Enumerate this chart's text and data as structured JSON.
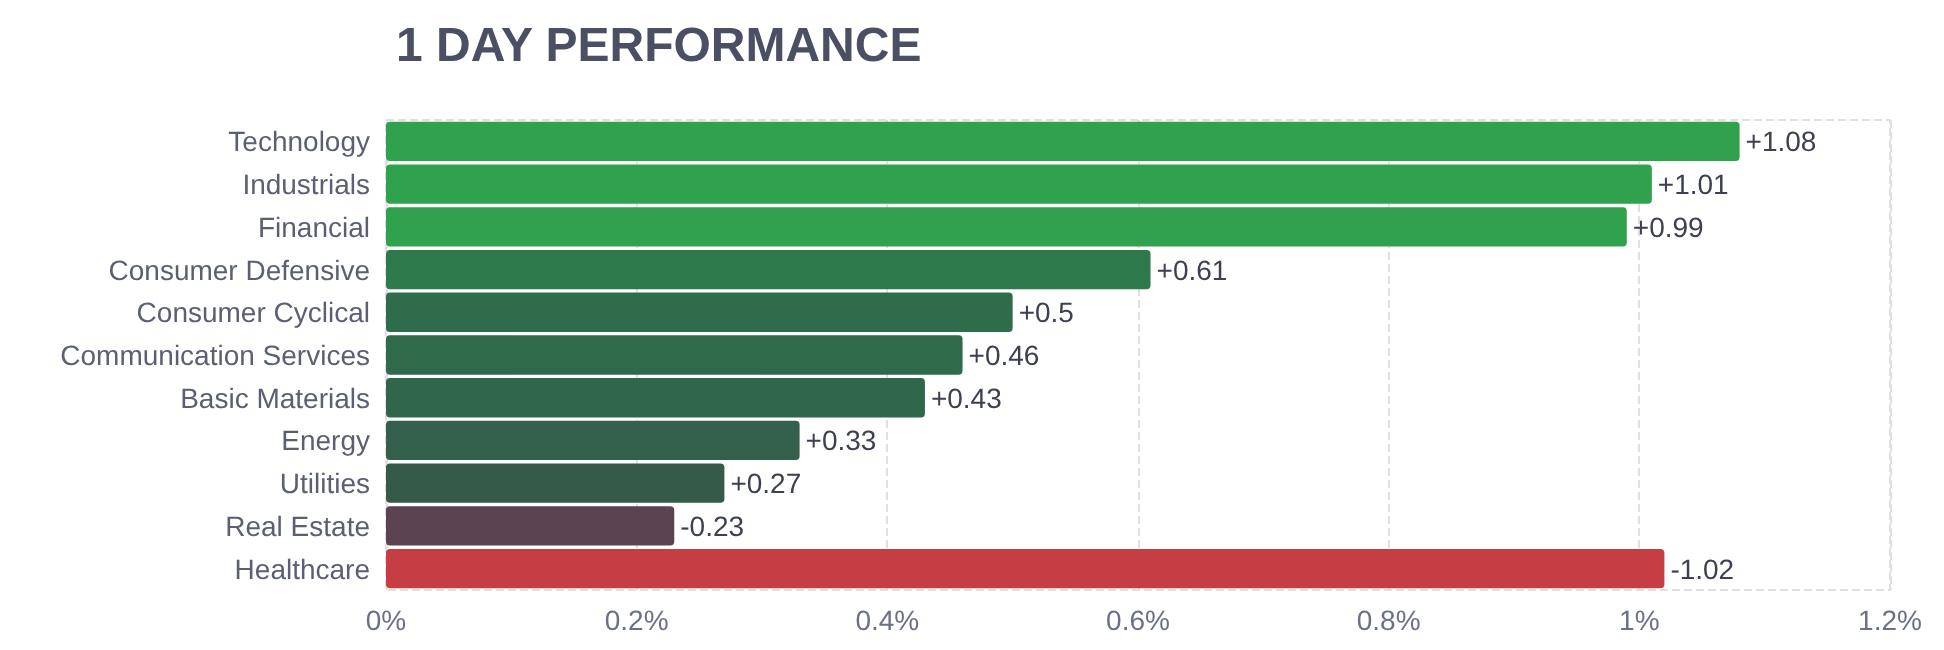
{
  "chart_data": {
    "type": "bar",
    "orientation": "horizontal",
    "title": "1 DAY PERFORMANCE",
    "categories": [
      "Technology",
      "Industrials",
      "Financial",
      "Consumer Defensive",
      "Consumer Cyclical",
      "Communication Services",
      "Basic Materials",
      "Energy",
      "Utilities",
      "Real Estate",
      "Healthcare"
    ],
    "values": [
      1.08,
      1.01,
      0.99,
      0.61,
      0.5,
      0.46,
      0.43,
      0.33,
      0.27,
      -0.23,
      -1.02
    ],
    "base": [
      0,
      0,
      0,
      0,
      0,
      0,
      0,
      0,
      0,
      0.23,
      1.02
    ],
    "value_labels": [
      "+1.08",
      "+1.01",
      "+0.99",
      "+0.61",
      "+0.5",
      "+0.46",
      "+0.43",
      "+0.33",
      "+0.27",
      "-0.23",
      "-1.02"
    ],
    "colors": [
      "#30a24e",
      "#30a24e",
      "#30a24e",
      "#2e7a4c",
      "#2f6c4b",
      "#2f6a4b",
      "#30674b",
      "#33604a",
      "#355a4a",
      "#5b4352",
      "#c63d43"
    ],
    "xlim": [
      0,
      1.2
    ],
    "xticks": [
      {
        "value": 0,
        "label": "0%"
      },
      {
        "value": 0.2,
        "label": "0.2%"
      },
      {
        "value": 0.4,
        "label": "0.4%"
      },
      {
        "value": 0.6,
        "label": "0.6%"
      },
      {
        "value": 0.8,
        "label": "0.8%"
      },
      {
        "value": 1,
        "label": "1%"
      },
      {
        "value": 1.2,
        "label": "1.2%"
      }
    ],
    "grid": "x"
  }
}
